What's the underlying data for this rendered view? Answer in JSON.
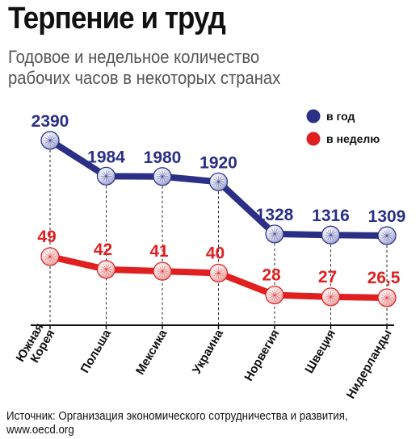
{
  "chart_data": {
    "type": "line",
    "title": "Терпение и труд",
    "subtitle_lines": [
      "Годовое и недельное количество",
      "рабочих часов в некоторых странах"
    ],
    "categories": [
      "Южная Корея",
      "Польша",
      "Мексика",
      "Украина",
      "Норвегия",
      "Швеция",
      "Нидерланды"
    ],
    "category_lines": [
      [
        "Южная",
        "Корея"
      ],
      [
        "Польша"
      ],
      [
        "Мексика"
      ],
      [
        "Украина"
      ],
      [
        "Норвегия"
      ],
      [
        "Швеция"
      ],
      [
        "Нидерланды"
      ]
    ],
    "series": [
      {
        "name": "в год",
        "color": "#2b2f86",
        "values": [
          2390,
          1984,
          1980,
          1920,
          1328,
          1316,
          1309
        ],
        "labels": [
          "2390",
          "1984",
          "1980",
          "1920",
          "1328",
          "1316",
          "1309"
        ]
      },
      {
        "name": "в неделю",
        "color": "#e02020",
        "values": [
          49,
          42,
          41,
          40,
          28,
          27,
          26.5
        ],
        "labels": [
          "49",
          "42",
          "41",
          "40",
          "28",
          "27",
          "26,5"
        ]
      }
    ],
    "legend_position": "top-right",
    "grid": false
  },
  "source": {
    "line1": "Источник: Организация экономического сотрудничества и развития,",
    "line2": "www.oecd.org"
  }
}
